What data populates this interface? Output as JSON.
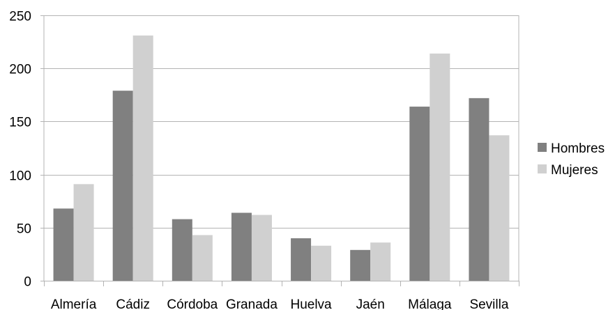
{
  "chart_data": {
    "type": "bar",
    "categories": [
      "Almería",
      "Cádiz",
      "Córdoba",
      "Granada",
      "Huelva",
      "Jaén",
      "Málaga",
      "Sevilla"
    ],
    "series": [
      {
        "name": "Hombres",
        "values": [
          68,
          179,
          58,
          64,
          40,
          29,
          164,
          172
        ],
        "color": "#808080"
      },
      {
        "name": "Mujeres",
        "values": [
          91,
          231,
          43,
          62,
          33,
          36,
          214,
          137
        ],
        "color": "#d0d0d0"
      }
    ],
    "y_ticks": [
      "0",
      "50",
      "100",
      "150",
      "200",
      "250"
    ],
    "ylim": [
      0,
      250
    ],
    "grid": "horizontal",
    "legend_position": "right",
    "colors": {
      "gridline": "#b3b3b3",
      "axis": "#b3b3b3"
    }
  }
}
